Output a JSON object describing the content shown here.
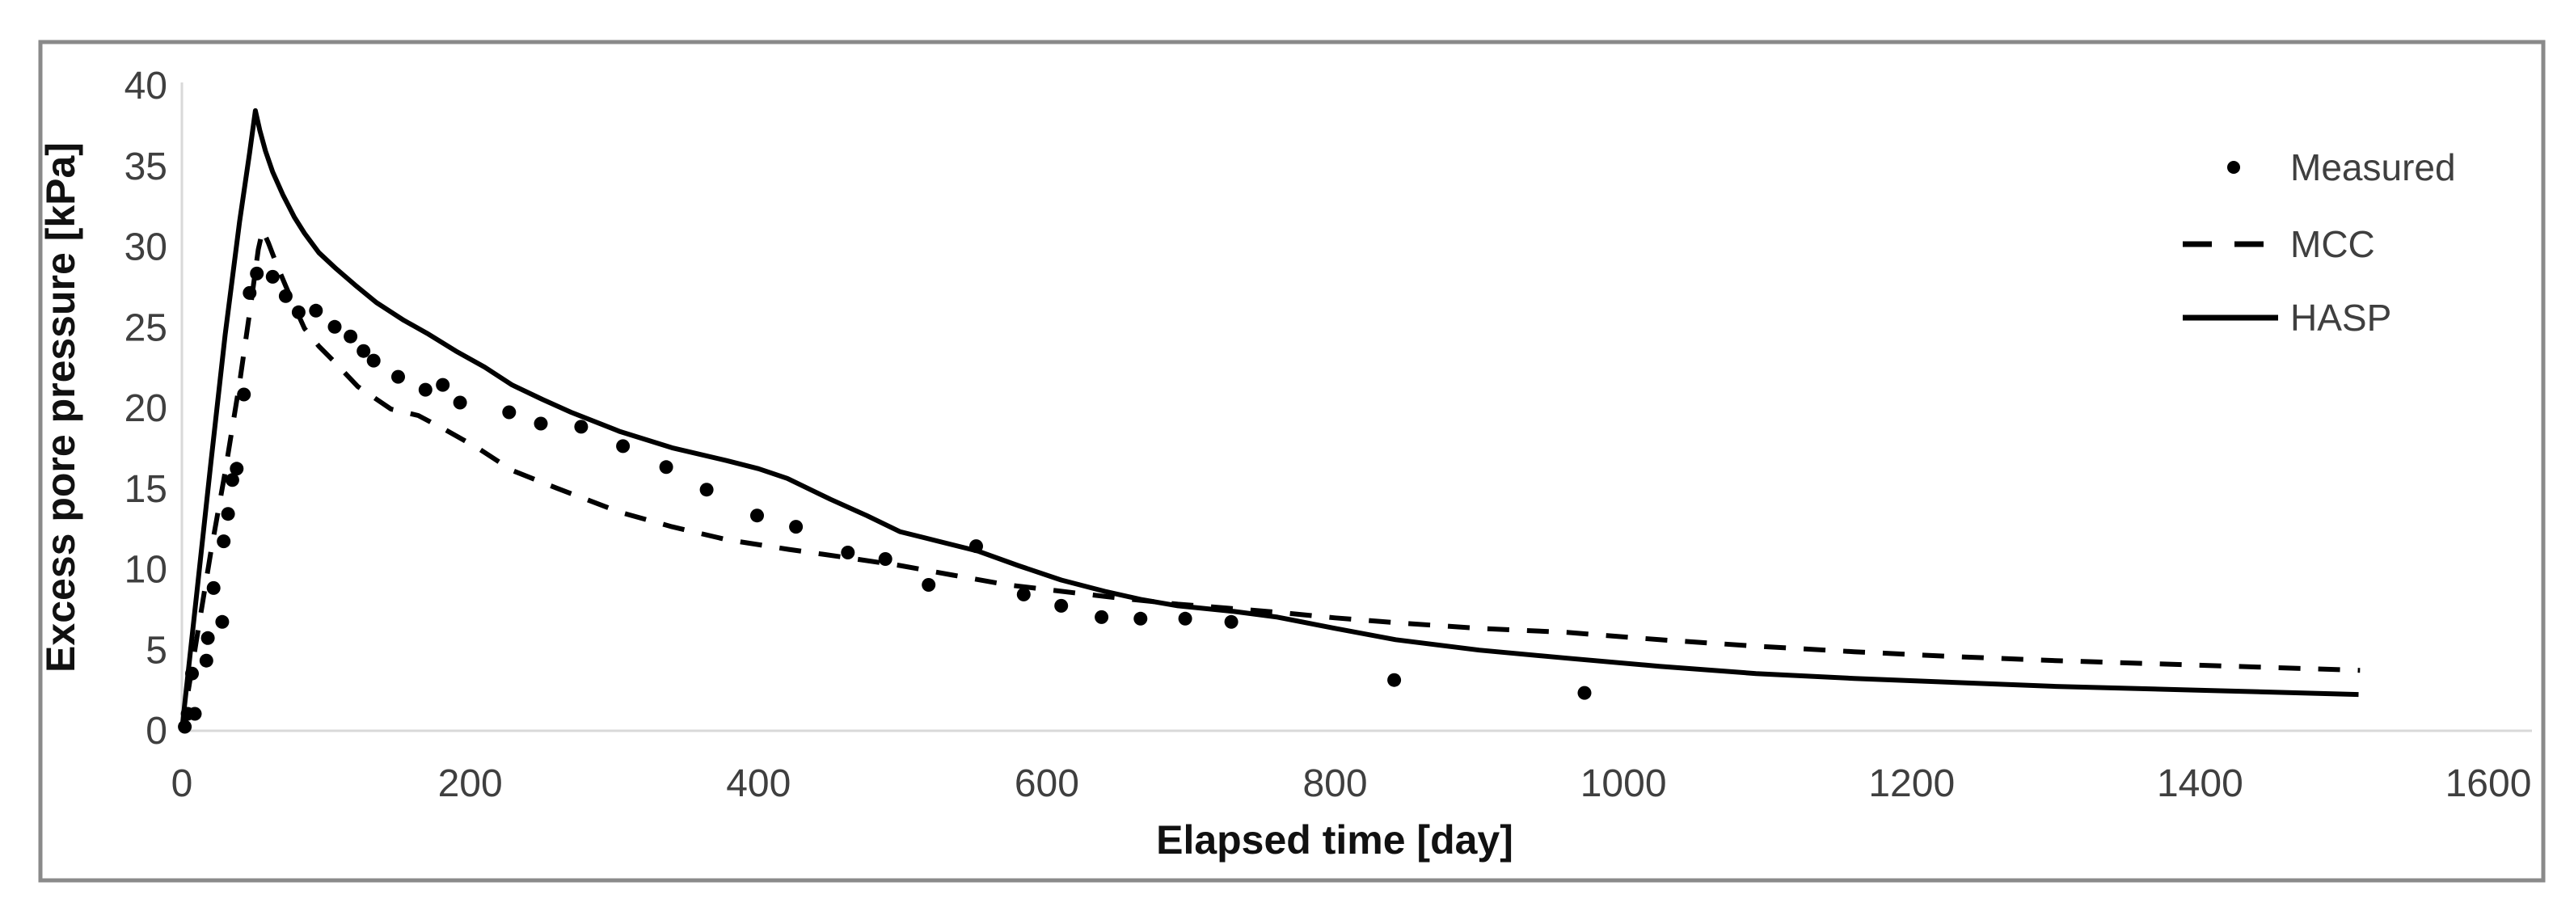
{
  "chart_data": {
    "type": "line",
    "title": "",
    "xlabel": "Elapsed time [day]",
    "ylabel": "Excess pore pressure [kPa]",
    "xlim": [
      0,
      1600
    ],
    "ylim": [
      0,
      40
    ],
    "xticks": [
      0,
      200,
      400,
      600,
      800,
      1000,
      1200,
      1400,
      1600
    ],
    "yticks": [
      0,
      5,
      10,
      15,
      20,
      25,
      30,
      35,
      40
    ],
    "grid": false,
    "legend_position": "right-top",
    "series": [
      {
        "name": "Measured",
        "type": "scatter",
        "style": "dot",
        "color": "#000000",
        "points": [
          [
            2,
            0.2
          ],
          [
            4,
            1.0
          ],
          [
            7,
            3.5
          ],
          [
            9,
            1.0
          ],
          [
            17,
            4.3
          ],
          [
            18,
            5.7
          ],
          [
            22,
            8.8
          ],
          [
            28,
            6.7
          ],
          [
            29,
            11.7
          ],
          [
            32,
            13.4
          ],
          [
            35,
            15.5
          ],
          [
            38,
            16.2
          ],
          [
            43,
            20.8
          ],
          [
            47,
            27.1
          ],
          [
            52,
            28.3
          ],
          [
            63,
            28.1
          ],
          [
            72,
            26.9
          ],
          [
            81,
            25.9
          ],
          [
            93,
            26.0
          ],
          [
            106,
            25.0
          ],
          [
            117,
            24.4
          ],
          [
            126,
            23.5
          ],
          [
            133,
            22.9
          ],
          [
            150,
            21.9
          ],
          [
            169,
            21.1
          ],
          [
            181,
            21.4
          ],
          [
            193,
            20.3
          ],
          [
            227,
            19.7
          ],
          [
            249,
            19.0
          ],
          [
            277,
            18.8
          ],
          [
            306,
            17.6
          ],
          [
            336,
            16.3
          ],
          [
            364,
            14.9
          ],
          [
            399,
            13.3
          ],
          [
            426,
            12.6
          ],
          [
            462,
            11.0
          ],
          [
            488,
            10.6
          ],
          [
            518,
            9.0
          ],
          [
            551,
            11.4
          ],
          [
            584,
            8.4
          ],
          [
            610,
            7.7
          ],
          [
            638,
            7.0
          ],
          [
            665,
            6.9
          ],
          [
            696,
            6.9
          ],
          [
            728,
            6.7
          ],
          [
            841,
            3.1
          ],
          [
            973,
            2.3
          ]
        ]
      },
      {
        "name": "MCC",
        "type": "line",
        "style": "dashed",
        "color": "#000000",
        "points": [
          [
            0,
            0
          ],
          [
            10,
            5.5
          ],
          [
            20,
            11
          ],
          [
            30,
            16
          ],
          [
            40,
            21.5
          ],
          [
            48,
            26.5
          ],
          [
            53,
            29.8
          ],
          [
            56,
            31
          ],
          [
            60,
            30.2
          ],
          [
            66,
            28.8
          ],
          [
            75,
            26.9
          ],
          [
            85,
            24.9
          ],
          [
            95,
            23.8
          ],
          [
            105,
            22.9
          ],
          [
            122,
            21.3
          ],
          [
            145,
            19.9
          ],
          [
            164,
            19.5
          ],
          [
            183,
            18.6
          ],
          [
            205,
            17.5
          ],
          [
            229,
            16.1
          ],
          [
            260,
            15.0
          ],
          [
            304,
            13.5
          ],
          [
            340,
            12.6
          ],
          [
            378,
            11.8
          ],
          [
            421,
            11.2
          ],
          [
            460,
            10.7
          ],
          [
            498,
            10.2
          ],
          [
            535,
            9.6
          ],
          [
            573,
            9.0
          ],
          [
            610,
            8.6
          ],
          [
            648,
            8.2
          ],
          [
            691,
            7.8
          ],
          [
            726,
            7.55
          ],
          [
            760,
            7.3
          ],
          [
            800,
            6.95
          ],
          [
            842,
            6.65
          ],
          [
            900,
            6.3
          ],
          [
            961,
            6.05
          ],
          [
            1025,
            5.6
          ],
          [
            1092,
            5.2
          ],
          [
            1160,
            4.85
          ],
          [
            1229,
            4.55
          ],
          [
            1300,
            4.3
          ],
          [
            1406,
            4.0
          ],
          [
            1511,
            3.7
          ]
        ]
      },
      {
        "name": "HASP",
        "type": "line",
        "style": "solid",
        "color": "#000000",
        "points": [
          [
            0,
            0
          ],
          [
            10,
            8.2
          ],
          [
            20,
            16.5
          ],
          [
            30,
            24.5
          ],
          [
            40,
            31.5
          ],
          [
            47,
            35.8
          ],
          [
            51,
            38.4
          ],
          [
            54,
            37.2
          ],
          [
            58,
            35.9
          ],
          [
            63,
            34.6
          ],
          [
            70,
            33.2
          ],
          [
            78,
            31.8
          ],
          [
            85,
            30.8
          ],
          [
            95,
            29.6
          ],
          [
            107,
            28.6
          ],
          [
            120,
            27.6
          ],
          [
            135,
            26.5
          ],
          [
            154,
            25.4
          ],
          [
            170,
            24.6
          ],
          [
            190,
            23.5
          ],
          [
            210,
            22.5
          ],
          [
            229,
            21.4
          ],
          [
            250,
            20.5
          ],
          [
            270,
            19.7
          ],
          [
            304,
            18.5
          ],
          [
            340,
            17.5
          ],
          [
            378,
            16.7
          ],
          [
            400,
            16.2
          ],
          [
            420,
            15.6
          ],
          [
            450,
            14.3
          ],
          [
            475,
            13.3
          ],
          [
            498,
            12.3
          ],
          [
            525,
            11.7
          ],
          [
            552,
            11.1
          ],
          [
            580,
            10.2
          ],
          [
            610,
            9.3
          ],
          [
            640,
            8.6
          ],
          [
            665,
            8.1
          ],
          [
            691,
            7.7
          ],
          [
            730,
            7.35
          ],
          [
            760,
            7.0
          ],
          [
            800,
            6.3
          ],
          [
            842,
            5.6
          ],
          [
            900,
            4.95
          ],
          [
            961,
            4.45
          ],
          [
            1025,
            3.95
          ],
          [
            1092,
            3.5
          ],
          [
            1160,
            3.2
          ],
          [
            1229,
            2.95
          ],
          [
            1300,
            2.7
          ],
          [
            1406,
            2.45
          ],
          [
            1510,
            2.2
          ]
        ]
      }
    ]
  },
  "style": {
    "background": "#ffffff",
    "border_color": "#8a8a8a",
    "axis_line_color": "#d9d9d9",
    "tick_label_color": "#3f3f3f",
    "series_color": "#000000"
  }
}
